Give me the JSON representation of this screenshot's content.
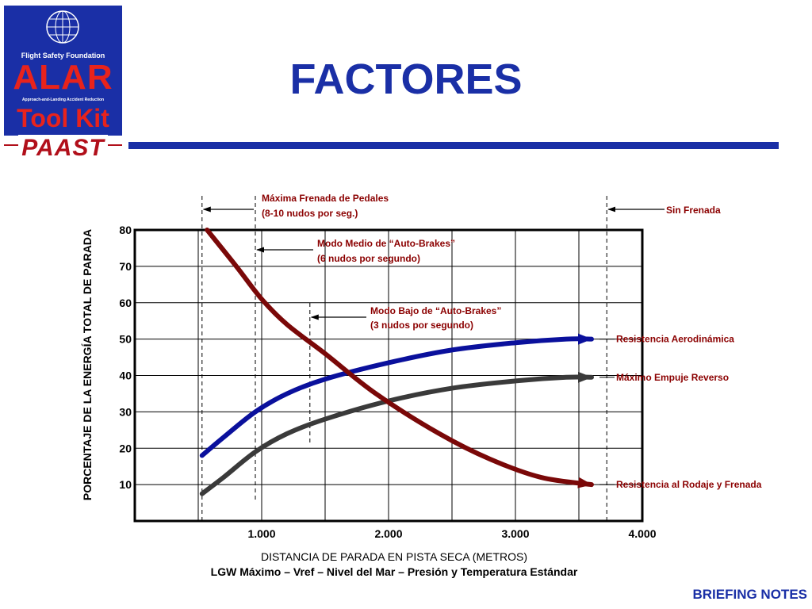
{
  "logo": {
    "org": "Flight Safety Foundation",
    "alar": "ALAR",
    "subtitle": "Approach-and-Landing Accident Reduction",
    "toolkit": "Tool Kit",
    "paast": "PAAST"
  },
  "title": "FACTORES",
  "footer": "BRIEFING NOTES",
  "colors": {
    "brand_blue": "#1a2fa6",
    "brand_red": "#e8231c",
    "annotation_red": "#8b0000",
    "series_aero": "#0a109c",
    "series_reverse": "#3a3a3a",
    "series_braking": "#7a0808"
  },
  "chart_data": {
    "type": "line",
    "xlabel": "DISTANCIA DE PARADA EN PISTA SECA (METROS)",
    "xlabel2": "LGW  Máximo – Vref – Nivel del Mar – Presión y Temperatura Estándar",
    "ylabel": "PORCENTAJE DE LA ENERGÍA TOTAL DE PARADA",
    "xlim": [
      0,
      4000
    ],
    "ylim": [
      0,
      80
    ],
    "x_ticks": [
      {
        "v": 1000,
        "label": "1.000"
      },
      {
        "v": 2000,
        "label": "2.000"
      },
      {
        "v": 3000,
        "label": "3.000"
      },
      {
        "v": 4000,
        "label": "4.000"
      }
    ],
    "y_ticks": [
      {
        "v": 10,
        "label": "10"
      },
      {
        "v": 20,
        "label": "20"
      },
      {
        "v": 30,
        "label": "30"
      },
      {
        "v": 40,
        "label": "40"
      },
      {
        "v": 50,
        "label": "50"
      },
      {
        "v": 60,
        "label": "60"
      },
      {
        "v": 70,
        "label": "70"
      },
      {
        "v": 80,
        "label": "80"
      }
    ],
    "grid": true,
    "series": [
      {
        "name": "Resistencia Aerodinámica",
        "x": [
          530,
          700,
          950,
          1200,
          1500,
          2000,
          2500,
          3000,
          3400,
          3600
        ],
        "y": [
          18,
          23,
          30,
          35,
          39,
          43.5,
          47,
          49,
          50,
          50
        ]
      },
      {
        "name": "Máximo Empuje Reverso",
        "x": [
          530,
          700,
          950,
          1200,
          1500,
          2000,
          2500,
          3000,
          3400,
          3600
        ],
        "y": [
          7.5,
          12,
          19,
          24,
          28,
          33,
          36.5,
          38.5,
          39.5,
          39.5
        ]
      },
      {
        "name": "Resistencia al Rodaje y Frenada",
        "x": [
          570,
          800,
          1000,
          1200,
          1500,
          1900,
          2400,
          2800,
          3200,
          3600
        ],
        "y": [
          80,
          70,
          61,
          54,
          46,
          35,
          24,
          17,
          12,
          10
        ]
      }
    ],
    "markers": [
      {
        "x": 530,
        "label1": "Máxima Frenada de Pedales",
        "label2": "(8-10 nudos por seg.)"
      },
      {
        "x": 950,
        "label1": "Modo Medio de “Auto-Brakes”",
        "label2": "(6 nudos por segundo)"
      },
      {
        "x": 1380,
        "label1": "Modo Bajo de “Auto-Brakes”",
        "label2": "(3 nudos por segundo)"
      },
      {
        "x": 3720,
        "label1": "Sin Frenada",
        "label2": ""
      }
    ]
  }
}
